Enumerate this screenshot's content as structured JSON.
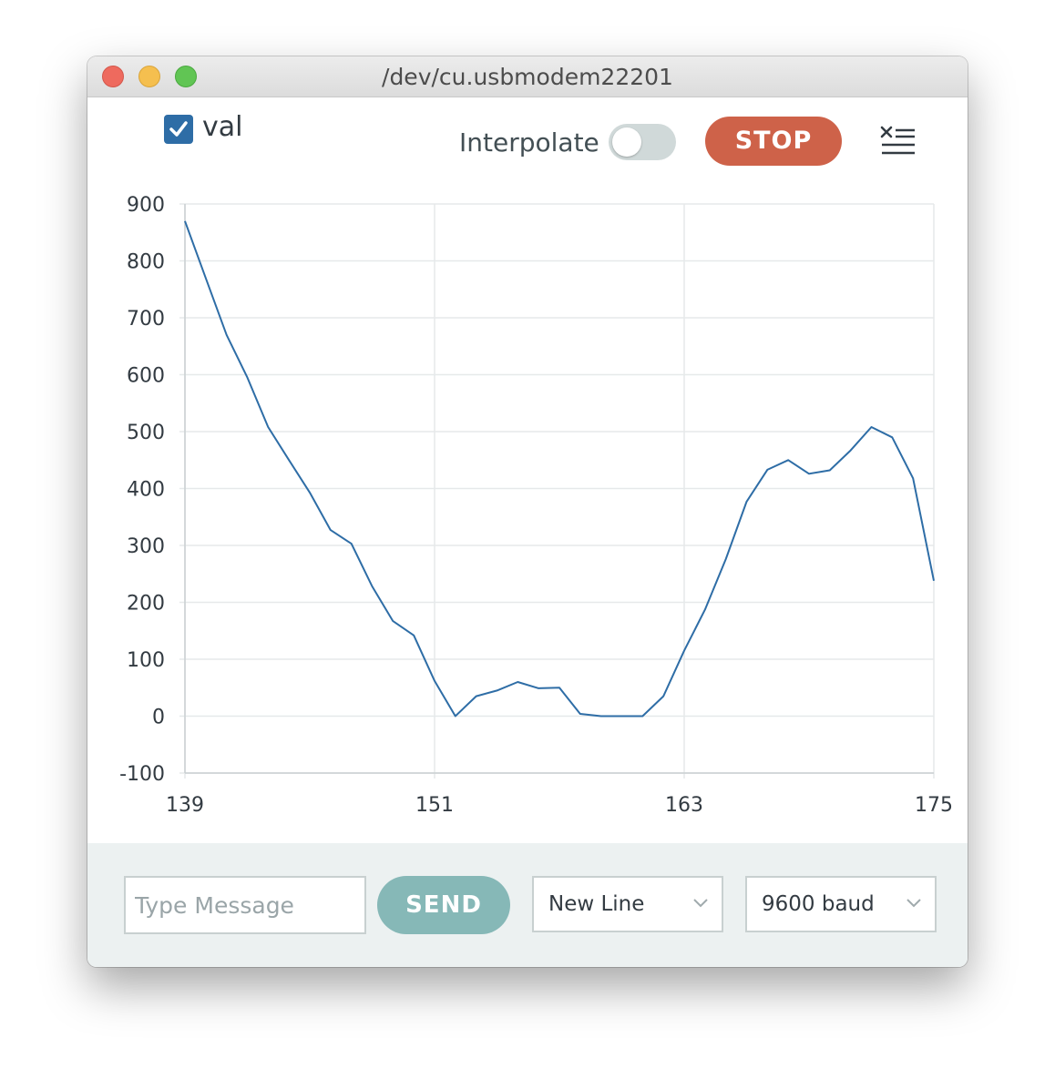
{
  "window": {
    "title": "/dev/cu.usbmodem22201"
  },
  "toolbar": {
    "series_label": "val",
    "series_checked": true,
    "interpolate_label": "Interpolate",
    "interpolate_on": false,
    "stop_label": "STOP",
    "clear_icon": "clear-output-icon"
  },
  "chart_data": {
    "type": "line",
    "x": [
      139,
      140,
      141,
      142,
      143,
      144,
      145,
      146,
      147,
      148,
      149,
      150,
      151,
      152,
      153,
      154,
      155,
      156,
      157,
      158,
      159,
      160,
      161,
      162,
      163,
      164,
      165,
      166,
      167,
      168,
      169,
      170,
      171,
      172,
      173,
      174,
      175
    ],
    "series": [
      {
        "name": "val",
        "color": "#2e6da6",
        "values": [
          870,
          770,
          670,
          595,
          508,
          450,
          393,
          327,
          303,
          228,
          167,
          142,
          62,
          0,
          35,
          45,
          60,
          49,
          50,
          4,
          0,
          0,
          0,
          35,
          115,
          187,
          276,
          377,
          433,
          450,
          426,
          432,
          467,
          508,
          490,
          418,
          238
        ]
      }
    ],
    "xticks": [
      139,
      151,
      163,
      175
    ],
    "yticks": [
      900,
      800,
      700,
      600,
      500,
      400,
      300,
      200,
      100,
      0,
      -100
    ],
    "xlim": [
      139,
      175
    ],
    "ylim": [
      -100,
      900
    ],
    "grid": true
  },
  "footer": {
    "message_placeholder": "Type Message",
    "message_value": "",
    "send_label": "SEND",
    "line_ending": "New Line",
    "baud_rate": "9600 baud"
  }
}
